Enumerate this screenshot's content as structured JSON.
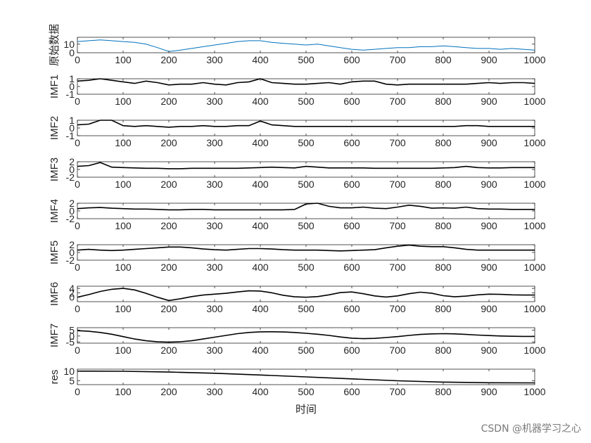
{
  "chart_data": {
    "type": "line",
    "xlabel": "时间",
    "x_ticks": [
      0,
      100,
      200,
      300,
      400,
      500,
      600,
      700,
      800,
      900,
      1000
    ],
    "xlim": [
      0,
      1000
    ],
    "grid": false,
    "panels": [
      {
        "ylabel": "原始数据",
        "color": "#0072bd",
        "ylim": [
          0,
          18
        ],
        "y_ticks": [
          0,
          10
        ],
        "x": [
          0,
          25,
          50,
          75,
          100,
          125,
          150,
          175,
          200,
          225,
          250,
          275,
          300,
          325,
          350,
          375,
          400,
          425,
          450,
          475,
          500,
          525,
          550,
          575,
          600,
          625,
          650,
          675,
          700,
          725,
          750,
          775,
          800,
          825,
          850,
          875,
          900,
          925,
          950,
          975,
          1000
        ],
        "y": [
          13,
          14,
          15,
          14,
          13,
          12,
          10,
          6,
          1.5,
          3,
          5,
          7,
          9,
          11,
          13,
          14,
          14,
          12,
          11,
          10,
          9,
          10,
          8,
          6,
          4,
          3,
          4,
          5,
          6,
          6,
          7,
          7,
          8,
          7,
          6,
          5,
          5,
          4,
          5,
          4,
          3
        ]
      },
      {
        "ylabel": "IMF1",
        "color": "#000000",
        "ylim": [
          -1,
          1
        ],
        "y_ticks": [
          -1,
          0,
          1
        ],
        "x": [
          0,
          25,
          50,
          75,
          100,
          125,
          150,
          175,
          200,
          225,
          250,
          275,
          300,
          325,
          350,
          375,
          400,
          425,
          450,
          475,
          500,
          525,
          550,
          575,
          600,
          625,
          650,
          675,
          700,
          725,
          750,
          775,
          800,
          825,
          850,
          875,
          900,
          925,
          950,
          975,
          1000
        ],
        "y": [
          0.7,
          0.8,
          1,
          0.8,
          0.6,
          0.4,
          0.7,
          0.5,
          0.2,
          0.3,
          0.3,
          0.5,
          0.3,
          0.2,
          0.5,
          0.6,
          1,
          0.5,
          0.4,
          0.3,
          0.3,
          0.4,
          0.5,
          0.3,
          0.6,
          0.7,
          0.7,
          0.3,
          0.2,
          0.3,
          0.3,
          0.3,
          0.3,
          0.3,
          0.3,
          0.4,
          0.5,
          0.4,
          0.5,
          0.5,
          0.4
        ]
      },
      {
        "ylabel": "IMF2",
        "color": "#000000",
        "ylim": [
          -1,
          1
        ],
        "y_ticks": [
          -1,
          0,
          1
        ],
        "x": [
          0,
          25,
          50,
          75,
          100,
          125,
          150,
          175,
          200,
          225,
          250,
          275,
          300,
          325,
          350,
          375,
          400,
          425,
          450,
          475,
          500,
          525,
          550,
          575,
          600,
          625,
          650,
          675,
          700,
          725,
          750,
          775,
          800,
          825,
          850,
          875,
          900,
          925,
          950,
          975,
          1000
        ],
        "y": [
          0.4,
          0.5,
          1,
          1,
          0.3,
          0.2,
          0.3,
          0.2,
          0.1,
          0.2,
          0.2,
          0.3,
          0.2,
          0.2,
          0.3,
          0.3,
          0.9,
          0.4,
          0.3,
          0.2,
          0.2,
          0.2,
          0.2,
          0.2,
          0.2,
          0.2,
          0.2,
          0.2,
          0.2,
          0.2,
          0.2,
          0.2,
          0.2,
          0.2,
          0.3,
          0.3,
          0.2,
          0.2,
          0.2,
          0.2,
          0.2
        ]
      },
      {
        "ylabel": "IMF3",
        "color": "#000000",
        "ylim": [
          -2,
          2
        ],
        "y_ticks": [
          -2,
          0,
          2
        ],
        "x": [
          0,
          25,
          50,
          75,
          100,
          125,
          150,
          175,
          200,
          225,
          250,
          275,
          300,
          325,
          350,
          375,
          400,
          425,
          450,
          475,
          500,
          525,
          550,
          575,
          600,
          625,
          650,
          675,
          700,
          725,
          750,
          775,
          800,
          825,
          850,
          875,
          900,
          925,
          950,
          975,
          1000
        ],
        "y": [
          0.8,
          1,
          1.8,
          0.6,
          0.5,
          0.4,
          0.3,
          0.3,
          0.2,
          0.2,
          0.3,
          0.3,
          0.3,
          0.3,
          0.3,
          0.4,
          0.5,
          0.6,
          0.5,
          0.4,
          0.8,
          0.6,
          0.4,
          0.4,
          0.4,
          0.4,
          0.3,
          0.3,
          0.3,
          0.3,
          0.3,
          0.3,
          0.4,
          0.5,
          0.8,
          0.5,
          0.4,
          0.4,
          0.5,
          0.5,
          0.5
        ]
      },
      {
        "ylabel": "IMF4",
        "color": "#000000",
        "ylim": [
          -2,
          2
        ],
        "y_ticks": [
          -2,
          0,
          2
        ],
        "x": [
          0,
          25,
          50,
          75,
          100,
          125,
          150,
          175,
          200,
          225,
          250,
          275,
          300,
          325,
          350,
          375,
          400,
          425,
          450,
          475,
          500,
          525,
          550,
          575,
          600,
          625,
          650,
          675,
          700,
          725,
          750,
          775,
          800,
          825,
          850,
          875,
          900,
          925,
          950,
          975,
          1000
        ],
        "y": [
          0.6,
          0.8,
          0.9,
          0.7,
          0.6,
          0.5,
          0.5,
          0.4,
          0.3,
          0.3,
          0.4,
          0.4,
          0.3,
          0.3,
          0.3,
          0.3,
          0.3,
          0.3,
          0.3,
          0.4,
          1.8,
          2,
          1.2,
          0.8,
          0.8,
          1,
          0.7,
          0.6,
          1,
          1.5,
          1.2,
          0.7,
          0.8,
          0.7,
          1,
          0.6,
          0.5,
          0.5,
          0.4,
          0.4,
          0.4
        ]
      },
      {
        "ylabel": "IMF5",
        "color": "#000000",
        "ylim": [
          -2,
          2
        ],
        "y_ticks": [
          -2,
          0,
          2
        ],
        "x": [
          0,
          25,
          50,
          75,
          100,
          125,
          150,
          175,
          200,
          225,
          250,
          275,
          300,
          325,
          350,
          375,
          400,
          425,
          450,
          475,
          500,
          525,
          550,
          575,
          600,
          625,
          650,
          675,
          700,
          725,
          750,
          775,
          800,
          825,
          850,
          875,
          900,
          925,
          950,
          975,
          1000
        ],
        "y": [
          0.6,
          0.8,
          0.6,
          0.5,
          0.6,
          0.8,
          1,
          1.2,
          1.4,
          1.4,
          1.2,
          0.9,
          0.7,
          0.6,
          0.8,
          1,
          1,
          0.9,
          0.7,
          0.6,
          0.6,
          0.6,
          0.5,
          0.4,
          0.5,
          0.6,
          0.7,
          1.2,
          1.6,
          1.9,
          1.6,
          1.5,
          1.5,
          1.2,
          0.8,
          0.6,
          0.6,
          0.6,
          0.6,
          0.6,
          0.6
        ]
      },
      {
        "ylabel": "IMF6",
        "color": "#000000",
        "ylim": [
          -2,
          5
        ],
        "y_ticks": [
          0,
          2,
          4
        ],
        "x": [
          0,
          25,
          50,
          75,
          100,
          125,
          150,
          175,
          200,
          225,
          250,
          275,
          300,
          325,
          350,
          375,
          400,
          425,
          450,
          475,
          500,
          525,
          550,
          575,
          600,
          625,
          650,
          675,
          700,
          725,
          750,
          775,
          800,
          825,
          850,
          875,
          900,
          925,
          950,
          975,
          1000
        ],
        "y": [
          0,
          1.2,
          2.6,
          3.6,
          4,
          3.3,
          1.8,
          0,
          -1.5,
          -0.7,
          0.3,
          1,
          1.4,
          1.8,
          2.4,
          2.9,
          2.8,
          2,
          0.9,
          0.2,
          0,
          0.3,
          1.1,
          2.1,
          2.4,
          1.6,
          0.6,
          0.1,
          0.6,
          1.6,
          2.3,
          1.8,
          0.7,
          0.2,
          0.5,
          1.1,
          1.4,
          1.3,
          1.1,
          1,
          1
        ]
      },
      {
        "ylabel": "IMF7",
        "color": "#000000",
        "ylim": [
          -6,
          7
        ],
        "y_ticks": [
          -5,
          0,
          5
        ],
        "x": [
          0,
          25,
          50,
          75,
          100,
          125,
          150,
          175,
          200,
          225,
          250,
          275,
          300,
          325,
          350,
          375,
          400,
          425,
          450,
          475,
          500,
          525,
          550,
          575,
          600,
          625,
          650,
          675,
          700,
          725,
          750,
          775,
          800,
          825,
          850,
          875,
          900,
          925,
          950,
          975,
          1000
        ],
        "y": [
          4.5,
          4,
          3,
          1.5,
          -0.5,
          -2.5,
          -4,
          -4.9,
          -5.2,
          -4.8,
          -4,
          -2.5,
          -1,
          0.5,
          2,
          3,
          3.5,
          3.6,
          3.4,
          3,
          2.3,
          1.5,
          0.5,
          -0.8,
          -1.8,
          -2.2,
          -2,
          -1.3,
          -0.5,
          0.5,
          1.3,
          1.8,
          2,
          1.8,
          1.3,
          0.8,
          0.4,
          0,
          -0.2,
          -0.3,
          -0.3
        ]
      },
      {
        "ylabel": "res",
        "color": "#000000",
        "ylim": [
          3,
          11
        ],
        "y_ticks": [
          5,
          10
        ],
        "x": [
          0,
          100,
          200,
          300,
          400,
          500,
          600,
          700,
          800,
          900,
          1000
        ],
        "y": [
          10,
          9.9,
          9.5,
          8.9,
          8,
          7,
          6,
          5,
          4.3,
          4,
          3.9
        ]
      }
    ]
  },
  "watermark": "CSDN @机器学习之心"
}
